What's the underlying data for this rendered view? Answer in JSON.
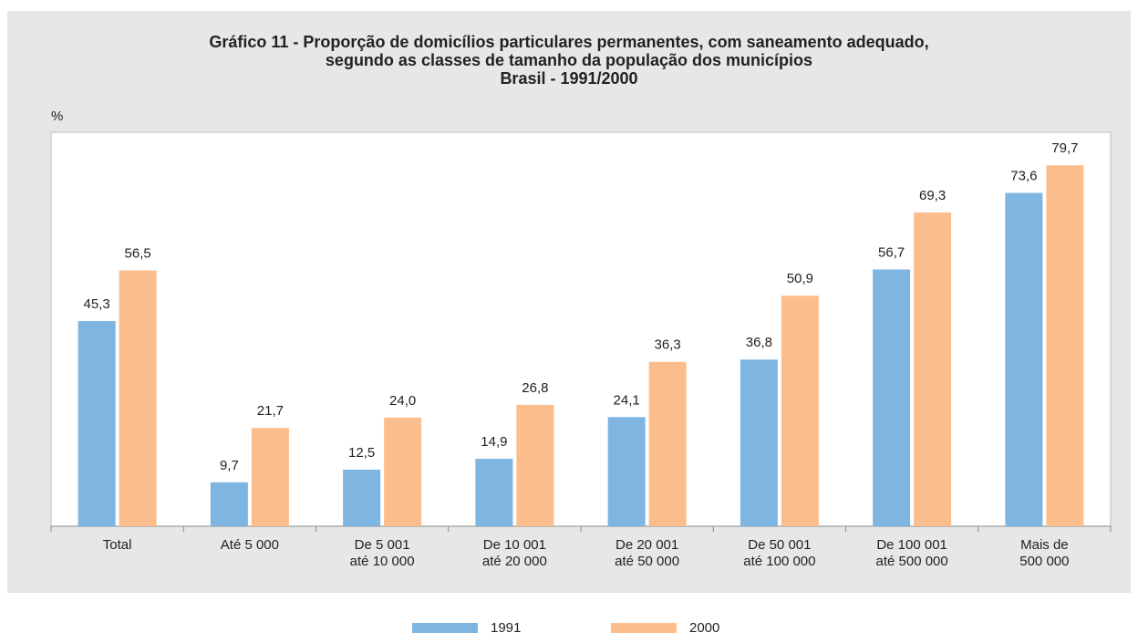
{
  "chart_data": {
    "type": "bar",
    "title": [
      "Gráfico 11 - Proporção de domicílios particulares permanentes, com saneamento adequado,",
      "segundo as classes de tamanho da população dos municípios",
      "Brasil - 1991/2000"
    ],
    "y_label": "%",
    "categories": [
      [
        "Total"
      ],
      [
        "Até 5 000"
      ],
      [
        "De 5 001",
        "até 10 000"
      ],
      [
        "De 10 001",
        "até 20 000"
      ],
      [
        "De 20 001",
        "até 50 000"
      ],
      [
        "De 50 001",
        "até 100 000"
      ],
      [
        "De 100 001",
        "até 500 000"
      ],
      [
        "Mais de",
        "500 000"
      ]
    ],
    "series": [
      {
        "name": "1991",
        "color": "#7fb5e1",
        "values": [
          45.3,
          9.7,
          12.5,
          14.9,
          24.1,
          36.8,
          56.7,
          73.6
        ],
        "value_labels": [
          "45,3",
          "9,7",
          "12,5",
          "14,9",
          "24,1",
          "36,8",
          "56,7",
          "73,6"
        ]
      },
      {
        "name": "2000",
        "color": "#fcbd8c",
        "values": [
          56.5,
          21.7,
          24.0,
          26.8,
          36.3,
          50.9,
          69.3,
          79.7
        ],
        "value_labels": [
          "56,5",
          "21,7",
          "24,0",
          "26,8",
          "36,3",
          "50,9",
          "69,3",
          "79,7"
        ]
      }
    ],
    "ylim": [
      0,
      87
    ]
  }
}
